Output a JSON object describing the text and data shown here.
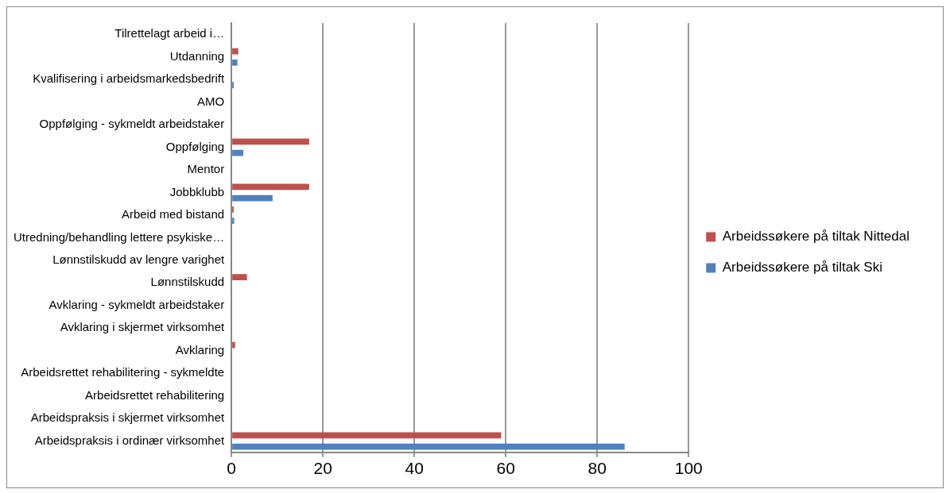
{
  "chart_data": {
    "type": "bar",
    "orientation": "horizontal",
    "categories": [
      "Tilrettelagt arbeid i…",
      "Utdanning",
      "Kvalifisering i arbeidsmarkedsbedrift",
      "AMO",
      "Oppfølging - sykmeldt arbeidstaker",
      "Oppfølging",
      "Mentor",
      "Jobbklubb",
      "Arbeid med bistand",
      "Utredning/behandling lettere psykiske…",
      "Lønnstilskudd av lengre varighet",
      "Lønnstilskudd",
      "Avklaring - sykmeldt arbeidstaker",
      "Avklaring i skjermet virksomhet",
      "Avklaring",
      "Arbeidsrettet rehabilitering - sykmeldte",
      "Arbeidsrettet rehabilitering",
      "Arbeidspraksis i skjermet virksomhet",
      "Arbeidspraksis i ordinær virksomhet"
    ],
    "series": [
      {
        "name": "Arbeidssøkere på tiltak Nittedal",
        "color": "#c0504d",
        "values": [
          0,
          1.5,
          0,
          0,
          0,
          17,
          0,
          17,
          0.5,
          0,
          0,
          3.4,
          0,
          0,
          0.8,
          0,
          0,
          0,
          59
        ]
      },
      {
        "name": "Arbeidssøkere på tiltak Ski",
        "color": "#4f81bd",
        "values": [
          0,
          1.3,
          0.5,
          0,
          0,
          2.6,
          0,
          9,
          0.6,
          0,
          0,
          0,
          0,
          0,
          0,
          0,
          0,
          0,
          86
        ]
      }
    ],
    "xlim": [
      0,
      100
    ],
    "xticks": [
      0,
      20,
      40,
      60,
      80,
      100
    ],
    "grid": "x",
    "legend": "right"
  }
}
